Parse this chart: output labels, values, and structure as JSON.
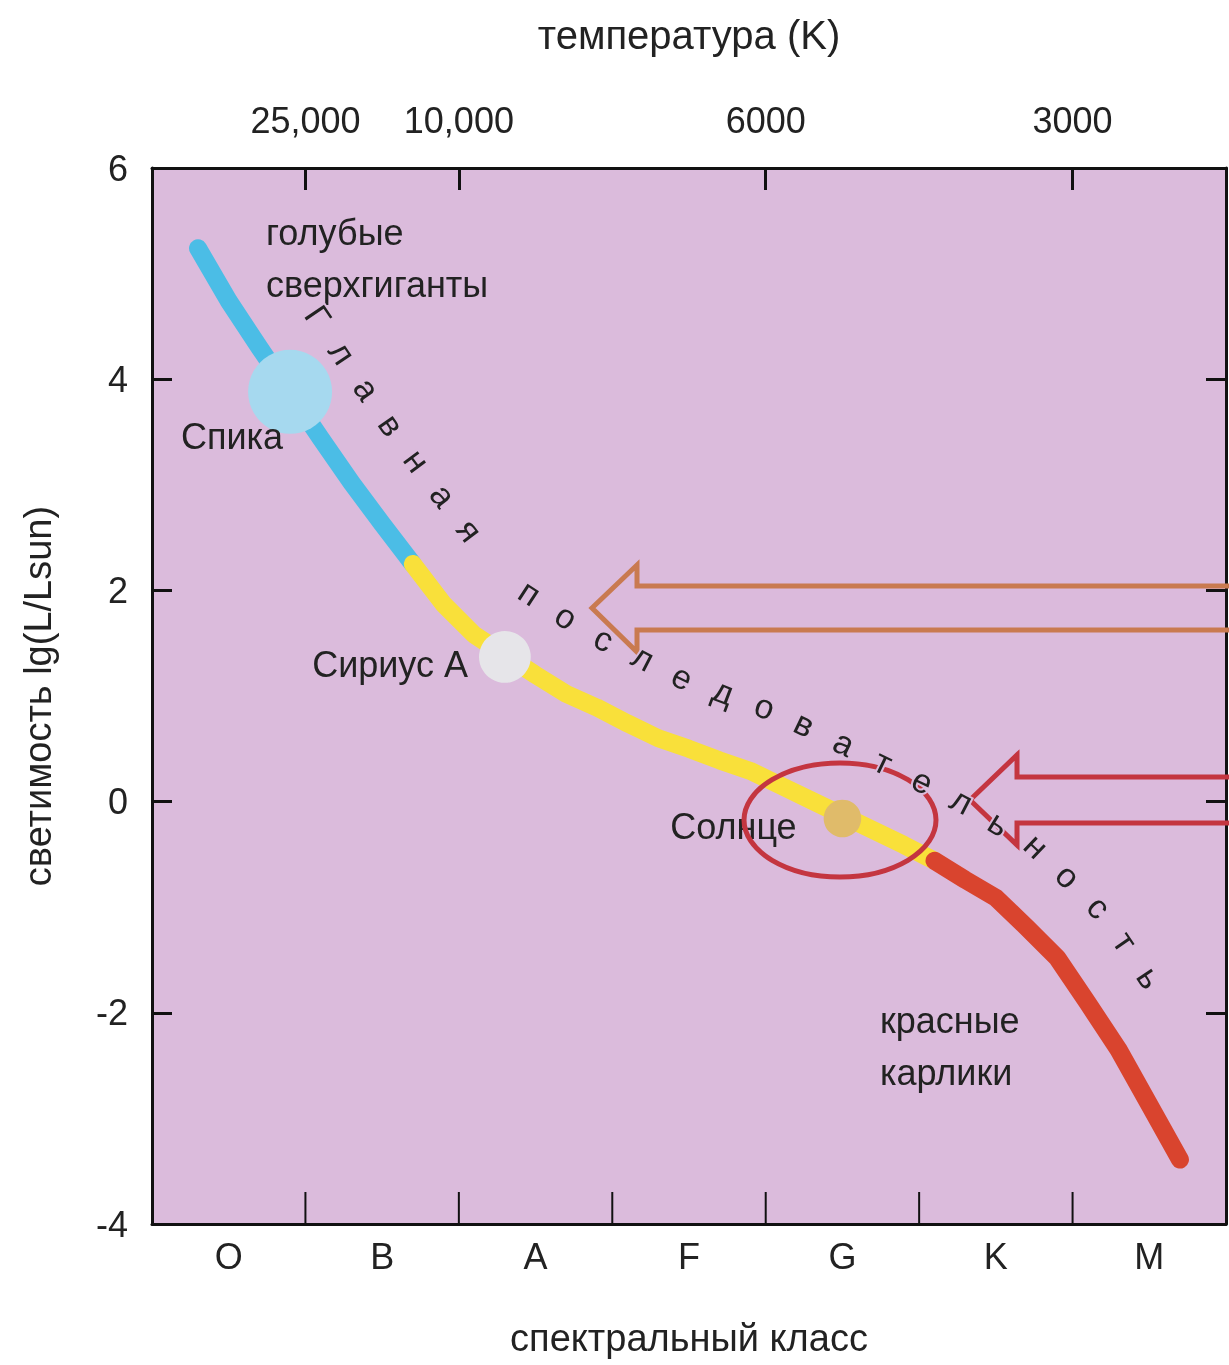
{
  "chart_data": {
    "type": "line",
    "xlabel": "спектральный класс",
    "ylabel": "светимость lg(L/Lsun)",
    "categories": [
      null,
      null,
      "O",
      null,
      null,
      null,
      null,
      "B",
      null,
      null,
      null,
      null,
      "A",
      null,
      null,
      null,
      null,
      "F",
      null,
      null,
      null,
      null,
      "G",
      null,
      null,
      null,
      null,
      "K",
      null,
      null,
      null,
      null,
      "M",
      null,
      null
    ],
    "ylim": [
      -4,
      6
    ],
    "yticks": [
      -4,
      -2,
      0,
      2,
      4,
      6
    ],
    "grid": false,
    "legend": false,
    "marker": "none",
    "line_style": "solid",
    "annotations": [
      "Главная последовательность",
      "температура (K)",
      "25,000",
      "10,000",
      "6000",
      "3000"
    ],
    "series": [
      {
        "name": "голубые сверхгиганты",
        "type": "line",
        "color": "#4bbde6",
        "values": [
          null,
          5.24,
          4.74,
          4.3,
          null,
          3.44,
          3.02,
          2.63,
          2.25,
          null,
          null,
          null,
          null,
          null,
          null,
          null,
          null,
          null,
          null,
          null,
          null,
          null,
          null,
          null,
          null,
          null,
          null,
          null,
          null,
          null,
          null,
          null,
          null,
          null,
          null
        ]
      },
      {
        "type": "line",
        "color": "#f9e03a",
        "values": [
          null,
          null,
          null,
          null,
          null,
          null,
          null,
          null,
          2.25,
          1.87,
          1.58,
          null,
          1.2,
          1.02,
          0.89,
          0.74,
          0.6,
          0.5,
          0.39,
          0.29,
          0.15,
          0.01,
          null,
          -0.27,
          -0.41,
          -0.56,
          null,
          null,
          null,
          null,
          null,
          null,
          null,
          null,
          null
        ]
      },
      {
        "name": "красные карлики",
        "type": "line",
        "color": "#d9442e",
        "values": [
          null,
          null,
          null,
          null,
          null,
          null,
          null,
          null,
          null,
          null,
          null,
          null,
          null,
          null,
          null,
          null,
          null,
          null,
          null,
          null,
          null,
          null,
          null,
          null,
          null,
          -0.56,
          -0.74,
          -0.91,
          -1.19,
          -1.48,
          -1.91,
          -2.35,
          -2.87,
          -3.39,
          null
        ]
      },
      {
        "name": "Спика",
        "type": "bubble",
        "marker": "circle",
        "color": "#a6d9ef",
        "values": [
          null,
          null,
          null,
          null,
          3.88,
          null,
          null,
          null,
          null,
          null,
          null,
          null,
          null,
          null,
          null,
          null,
          null,
          null,
          null,
          null,
          null,
          null,
          null,
          null,
          null,
          null,
          null,
          null,
          null,
          null,
          null,
          null,
          null,
          null,
          null
        ],
        "sizes": [
          null,
          null,
          null,
          null,
          1,
          null,
          null,
          null,
          null,
          null,
          null,
          null,
          null,
          null,
          null,
          null,
          null,
          null,
          null,
          null,
          null,
          null,
          null,
          null,
          null,
          null,
          null,
          null,
          null,
          null,
          null,
          null,
          null,
          null,
          null
        ]
      },
      {
        "name": "Сириус А",
        "type": "bubble",
        "marker": "circle",
        "color": "#e6e5e9",
        "values": [
          null,
          null,
          null,
          null,
          null,
          null,
          null,
          null,
          null,
          null,
          null,
          1.37,
          null,
          null,
          null,
          null,
          null,
          null,
          null,
          null,
          null,
          null,
          null,
          null,
          null,
          null,
          null,
          null,
          null,
          null,
          null,
          null,
          null,
          null,
          null
        ],
        "sizes": [
          null,
          null,
          null,
          null,
          null,
          null,
          null,
          null,
          null,
          null,
          null,
          0.38,
          null,
          null,
          null,
          null,
          null,
          null,
          null,
          null,
          null,
          null,
          null,
          null,
          null,
          null,
          null,
          null,
          null,
          null,
          null,
          null,
          null,
          null,
          null
        ]
      },
      {
        "name": "Солнце",
        "type": "bubble",
        "marker": "circle",
        "color": "#e0bb6a",
        "values": [
          null,
          null,
          null,
          null,
          null,
          null,
          null,
          null,
          null,
          null,
          null,
          null,
          null,
          null,
          null,
          null,
          null,
          null,
          null,
          null,
          null,
          null,
          -0.16,
          null,
          null,
          null,
          null,
          null,
          null,
          null,
          null,
          null,
          null,
          null,
          null
        ],
        "sizes": [
          null,
          null,
          null,
          null,
          null,
          null,
          null,
          null,
          null,
          null,
          null,
          null,
          null,
          null,
          null,
          null,
          null,
          null,
          null,
          null,
          null,
          null,
          0.2,
          null,
          null,
          null,
          null,
          null,
          null,
          null,
          null,
          null,
          null,
          null,
          null
        ]
      }
    ]
  }
}
